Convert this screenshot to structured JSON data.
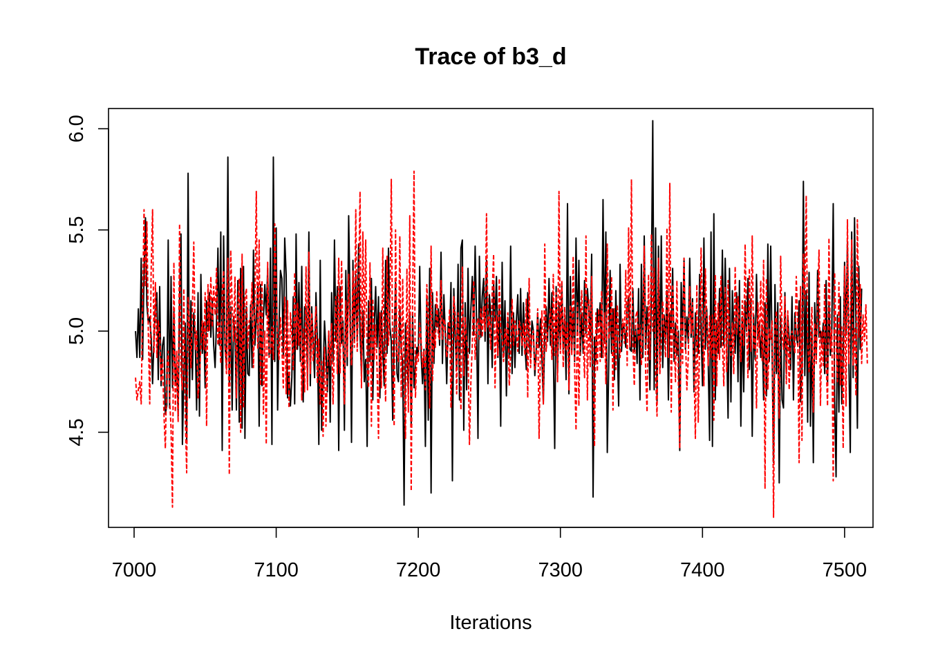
{
  "chart_data": {
    "type": "line",
    "title": "Trace of b3_d",
    "xlabel": "Iterations",
    "ylabel": "",
    "xlim": [
      6982,
      7520
    ],
    "ylim": [
      4.03,
      6.1
    ],
    "x_ticks": [
      7000,
      7100,
      7200,
      7300,
      7400,
      7500
    ],
    "x_tick_labels": [
      "7000",
      "7100",
      "7200",
      "7300",
      "7400",
      "7500"
    ],
    "y_ticks": [
      4.5,
      5.0,
      5.5,
      6.0
    ],
    "y_tick_labels": [
      "4.5",
      "5.0",
      "5.5",
      "6.0"
    ],
    "x_range": [
      7001,
      7500
    ],
    "series": [
      {
        "color": "#000000",
        "dash": "solid",
        "x_start": 7001,
        "x_step": 1,
        "values": [
          5.0,
          4.87,
          5.11,
          4.87,
          5.36,
          4.86,
          5.29,
          5.56,
          5.13,
          5.04,
          5.07,
          4.97,
          4.74,
          4.97,
          5.12,
          5.19,
          4.76,
          5.22,
          4.73,
          4.93,
          4.97,
          4.59,
          4.63,
          5.45,
          4.62,
          5.27,
          4.72,
          5.1,
          4.74,
          4.83,
          4.58,
          5.16,
          5.48,
          4.44,
          4.77,
          5.04,
          4.46,
          5.78,
          4.67,
          5.15,
          4.76,
          5.09,
          4.97,
          4.61,
          5.19,
          4.58,
          5.28,
          4.89,
          5.04,
          4.72,
          5.15,
          5.0,
          5.19,
          4.97,
          5.16,
          4.93,
          4.82,
          5.05,
          5.41,
          4.93,
          5.49,
          4.41,
          5.47,
          4.92,
          4.83,
          5.86,
          4.74,
          5.12,
          4.61,
          5.07,
          4.99,
          4.61,
          5.25,
          4.55,
          5.31,
          4.52,
          5.32,
          4.47,
          5.12,
          4.79,
          4.78,
          5.13,
          4.82,
          5.4,
          4.93,
          5.07,
          5.22,
          4.53,
          5.23,
          4.73,
          5.06,
          5.23,
          5.08,
          5.31,
          4.88,
          5.41,
          4.44,
          5.86,
          4.85,
          5.51,
          4.61,
          5.02,
          5.3,
          5.26,
          4.88,
          5.46,
          5.28,
          4.67,
          4.79,
          4.63,
          4.77,
          5.17,
          4.64,
          5.48,
          4.91,
          5.24,
          4.85,
          5.32,
          4.65,
          5.12,
          5.12,
          4.75,
          5.49,
          4.73,
          5.12,
          4.94,
          4.77,
          5.19,
          4.95,
          4.44,
          5.35,
          4.51,
          4.79,
          5.05,
          4.91,
          4.7,
          5.0,
          4.55,
          5.19,
          4.85,
          5.45,
          4.95,
          5.22,
          4.41,
          5.22,
          4.94,
          5.05,
          4.51,
          5.3,
          4.83,
          5.57,
          5.14,
          4.45,
          5.35,
          4.95,
          5.28,
          4.95,
          5.43,
          4.99,
          4.79,
          5.1,
          4.75,
          4.86,
          4.43,
          5.15,
          4.85,
          5.26,
          4.66,
          5.03,
          5.22,
          4.92,
          5.17,
          4.67,
          5.1,
          4.91,
          4.73,
          5.35,
          4.89,
          5.41,
          5.02,
          4.95,
          4.56,
          4.98,
          5.24,
          4.79,
          4.75,
          5.12,
          4.91,
          4.85,
          4.14,
          5.04,
          4.88,
          4.69,
          5.09,
          4.54,
          5.09,
          4.72,
          4.83,
          4.92,
          4.88,
          5.32,
          4.88,
          4.74,
          4.91,
          4.43,
          5.17,
          4.56,
          5.31,
          4.2,
          5.19,
          4.84,
          5.13,
          5.02,
          5.11,
          4.93,
          5.39,
          4.84,
          5.18,
          4.99,
          4.74,
          5.04,
          4.96,
          5.24,
          4.26,
          5.21,
          4.96,
          4.81,
          5.33,
          4.66,
          5.41,
          5.45,
          4.51,
          5.14,
          4.71,
          5.31,
          4.89,
          5.11,
          5.27,
          4.98,
          5.42,
          5.06,
          4.47,
          5.37,
          4.97,
          5.17,
          5.26,
          4.95,
          5.35,
          4.74,
          5.18,
          5.08,
          4.82,
          5.24,
          5.05,
          5.27,
          4.87,
          5.12,
          4.53,
          5.34,
          4.89,
          5.15,
          4.68,
          5.06,
          4.87,
          5.42,
          4.79,
          5.09,
          4.82,
          5.05,
          5.18,
          4.89,
          5.21,
          4.88,
          5.14,
          4.94,
          4.81,
          5.19,
          4.94,
          4.87,
          5.05,
          5.0,
          4.78,
          4.91,
          5.09,
          4.92,
          5.06,
          4.87,
          4.64,
          5.0,
          5.12,
          4.95,
          5.26,
          4.93,
          5.19,
          4.92,
          4.42,
          5.22,
          4.8,
          5.14,
          4.92,
          5.24,
          4.91,
          5.06,
          4.76,
          5.63,
          4.69,
          5.27,
          4.9,
          5.11,
          4.85,
          5.46,
          4.98,
          5.35,
          4.88,
          5.09,
          4.89,
          5.25,
          4.99,
          5.21,
          5.11,
          4.95,
          5.38,
          4.18,
          4.97,
          4.85,
          5.11,
          5.03,
          5.14,
          4.87,
          5.65,
          4.94,
          5.49,
          4.4,
          4.83,
          5.3,
          4.89,
          5.11,
          4.76,
          5.2,
          4.94,
          4.63,
          5.33,
          4.9,
          5.04,
          5.01,
          4.92,
          5.12,
          5.17,
          4.91,
          4.9,
          5.21,
          4.9,
          5.01,
          4.84,
          5.21,
          4.66,
          5.33,
          4.87,
          5.47,
          4.91,
          5.12,
          4.99,
          4.71,
          5.21,
          6.04,
          4.71,
          5.51,
          4.64,
          5.42,
          4.86,
          5.47,
          4.82,
          5.08,
          4.96,
          5.2,
          4.66,
          5.09,
          5.0,
          5.31,
          4.85,
          5.04,
          4.88,
          5.0,
          4.41,
          5.24,
          4.98,
          5.36,
          4.91,
          5.07,
          4.94,
          5.36,
          4.97,
          5.16,
          4.7,
          5.09,
          4.93,
          4.89,
          5.28,
          5.02,
          4.73,
          5.46,
          4.91,
          5.11,
          4.86,
          4.46,
          5.49,
          4.43,
          5.58,
          4.66,
          5.05,
          4.89,
          5.21,
          4.92,
          5.4,
          4.93,
          5.36,
          4.96,
          4.57,
          5.31,
          4.65,
          5.2,
          5.02,
          4.89,
          5.19,
          4.75,
          5.25,
          4.53,
          5.07,
          4.7,
          5.15,
          5.0,
          5.26,
          4.81,
          5.16,
          4.48,
          5.08,
          4.86,
          5.28,
          4.96,
          5.04,
          4.87,
          5.03,
          4.66,
          5.14,
          4.68,
          5.43,
          4.85,
          5.42,
          4.89,
          4.35,
          5.23,
          4.79,
          5.14,
          4.25,
          5.07,
          4.66,
          4.62,
          5.19,
          4.79,
          5.08,
          4.96,
          4.81,
          5.17,
          4.66,
          5.09,
          4.98,
          4.93,
          5.15,
          4.65,
          4.81,
          5.74,
          4.78,
          5.2,
          4.55,
          5.29,
          4.53,
          5.01,
          4.35,
          5.14,
          4.86,
          5.3,
          4.97,
          5.0,
          4.93,
          5.04,
          4.79,
          5.25,
          4.74,
          5.13,
          4.88,
          5.01,
          5.63,
          4.66,
          4.28,
          5.08,
          4.6,
          5.17,
          4.64,
          4.87,
          5.34,
          4.98,
          5.44,
          4.87,
          4.4,
          5.49,
          4.77,
          5.56,
          5.02,
          4.52,
          5.32,
          4.91,
          5.21
        ]
      },
      {
        "color": "#ff0000",
        "dash": "dashed",
        "x_start": 7001,
        "x_step": 1,
        "values": [
          4.77,
          4.66,
          4.71,
          4.75,
          4.64,
          5.15,
          5.6,
          5.22,
          5.54,
          5.0,
          4.64,
          5.3,
          5.6,
          4.89,
          5.24,
          4.87,
          5.05,
          4.99,
          4.75,
          4.86,
          4.59,
          4.42,
          4.81,
          4.9,
          4.67,
          4.52,
          4.13,
          5.34,
          4.6,
          4.9,
          4.55,
          5.53,
          4.8,
          4.71,
          5.21,
          4.58,
          4.3,
          5.17,
          5.0,
          4.82,
          5.11,
          5.44,
          4.91,
          5.0,
          4.67,
          4.76,
          4.94,
          5.05,
          4.91,
          5.19,
          4.53,
          5.23,
          5.0,
          5.27,
          5.02,
          5.22,
          5.08,
          5.31,
          4.93,
          5.04,
          4.84,
          5.19,
          5.3,
          4.93,
          4.79,
          5.36,
          4.29,
          5.4,
          5.13,
          4.95,
          5.27,
          4.67,
          5.11,
          5.26,
          4.5,
          5.38,
          4.62,
          5.16,
          5.21,
          4.91,
          5.05,
          5.06,
          5.24,
          4.82,
          5.14,
          5.69,
          4.91,
          5.45,
          4.73,
          5.25,
          4.59,
          5.0,
          4.44,
          5.34,
          4.87,
          4.89,
          5.02,
          4.86,
          5.53,
          5.22,
          4.94,
          4.86,
          5.07,
          4.92,
          4.72,
          5.17,
          4.69,
          5.15,
          4.62,
          5.09,
          4.98,
          4.81,
          5.29,
          4.91,
          5.14,
          4.93,
          5.11,
          4.66,
          5.01,
          4.7,
          5.32,
          4.71,
          5.39,
          4.79,
          5.09,
          4.85,
          4.98,
          5.12,
          4.74,
          4.96,
          4.64,
          4.85,
          4.48,
          4.92,
          4.53,
          4.79,
          5.0,
          4.83,
          5.04,
          4.64,
          4.95,
          5.17,
          4.79,
          5.36,
          4.79,
          5.35,
          4.93,
          4.64,
          5.15,
          4.87,
          5.28,
          4.99,
          4.83,
          5.3,
          4.92,
          5.6,
          4.9,
          5.2,
          5.69,
          4.72,
          5.49,
          4.97,
          5.45,
          4.83,
          4.72,
          5.34,
          4.53,
          5.16,
          4.86,
          5.03,
          4.81,
          4.47,
          5.09,
          4.72,
          5.41,
          4.88,
          4.65,
          5.37,
          4.93,
          5.1,
          5.75,
          4.85,
          4.53,
          5.5,
          4.89,
          4.85,
          5.47,
          4.67,
          5.26,
          4.77,
          4.47,
          5.31,
          4.6,
          5.57,
          4.21,
          5.14,
          5.79,
          4.67,
          4.89,
          4.85,
          5.04,
          4.95,
          4.82,
          4.9,
          4.71,
          5.23,
          5.08,
          4.62,
          5.42,
          4.75,
          5.0,
          4.92,
          5.2,
          4.98,
          4.96,
          5.25,
          4.96,
          5.06,
          5.03,
          4.87,
          4.93,
          5.11,
          4.62,
          4.93,
          5.17,
          5.08,
          4.69,
          5.09,
          4.9,
          4.61,
          5.32,
          4.78,
          5.07,
          4.95,
          4.91,
          4.44,
          4.75,
          4.93,
          5.25,
          4.86,
          5.03,
          5.06,
          4.96,
          5.11,
          4.97,
          5.12,
          5.0,
          5.58,
          5.02,
          5.07,
          4.91,
          5.19,
          5.38,
          4.72,
          5.08,
          4.88,
          5.26,
          5.0,
          4.97,
          4.85,
          5.01,
          4.93,
          5.09,
          4.73,
          4.89,
          5.16,
          4.93,
          5.05,
          5.01,
          4.9,
          5.05,
          5.02,
          4.93,
          5.04,
          4.88,
          5.16,
          4.67,
          5.26,
          4.82,
          4.98,
          5.0,
          4.81,
          4.85,
          5.11,
          4.47,
          4.94,
          5.1,
          4.64,
          5.43,
          4.9,
          5.0,
          5.02,
          5.11,
          4.86,
          5.28,
          4.88,
          5.19,
          4.75,
          5.69,
          4.89,
          5.25,
          4.82,
          5.12,
          4.9,
          5.04,
          4.71,
          5.13,
          4.88,
          5.37,
          4.82,
          4.51,
          5.14,
          4.63,
          5.04,
          5.2,
          4.97,
          4.77,
          5.47,
          4.66,
          5.16,
          4.82,
          5.27,
          4.81,
          4.43,
          5.09,
          4.8,
          5.11,
          4.85,
          5.2,
          4.87,
          5.09,
          4.74,
          5.43,
          4.96,
          5.0,
          5.27,
          4.61,
          5.11,
          4.81,
          5.13,
          4.97,
          4.87,
          4.99,
          5.06,
          4.94,
          5.3,
          4.83,
          5.51,
          4.92,
          5.75,
          4.93,
          4.73,
          5.07,
          5.1,
          4.95,
          5.03,
          4.83,
          5.0,
          5.42,
          4.79,
          4.6,
          5.28,
          4.86,
          5.48,
          5.0,
          5.31,
          4.79,
          4.58,
          5.36,
          4.79,
          4.95,
          5.15,
          5.02,
          4.87,
          5.51,
          4.87,
          5.73,
          4.6,
          5.23,
          4.96,
          4.75,
          5.25,
          4.76,
          4.42,
          5.07,
          4.84,
          5.36,
          4.97,
          4.71,
          4.87,
          5.22,
          4.99,
          5.14,
          4.83,
          4.47,
          5.23,
          4.55,
          4.95,
          5.41,
          5.06,
          4.73,
          5.31,
          5.06,
          4.83,
          5.08,
          4.87,
          5.08,
          4.56,
          5.28,
          4.73,
          5.14,
          4.86,
          5.27,
          4.95,
          4.73,
          5.22,
          4.8,
          5.25,
          4.95,
          4.88,
          5.04,
          4.79,
          5.32,
          4.98,
          5.17,
          5.05,
          4.85,
          5.15,
          4.93,
          5.43,
          5.03,
          4.77,
          5.31,
          4.9,
          5.47,
          4.91,
          5.03,
          4.62,
          5.14,
          4.92,
          5.25,
          4.85,
          5.35,
          4.22,
          5.26,
          4.71,
          5.01,
          4.96,
          5.05,
          4.08,
          5.02,
          5.1,
          4.85,
          4.57,
          5.37,
          4.98,
          4.91,
          5.17,
          4.74,
          5.1,
          4.71,
          4.97,
          5.0,
          4.96,
          4.89,
          5.27,
          5.05,
          4.35,
          5.22,
          4.46,
          5.38,
          5.16,
          5.67,
          4.95,
          4.8,
          4.96,
          5.12,
          4.6,
          5.04,
          4.84,
          5.12,
          5.4,
          4.63,
          5.0,
          4.83,
          5.23,
          4.85,
          4.63,
          5.46,
          4.91,
          5.01,
          4.26,
          5.29,
          4.95,
          4.75,
          5.24,
          4.73,
          5.02,
          4.42,
          5.32,
          4.63,
          5.55,
          4.84,
          5.07,
          5.45,
          4.83,
          5.02,
          4.68,
          5.55,
          4.97,
          5.23,
          4.84,
          5.08,
          4.95,
          5.13,
          4.84
        ]
      }
    ]
  }
}
